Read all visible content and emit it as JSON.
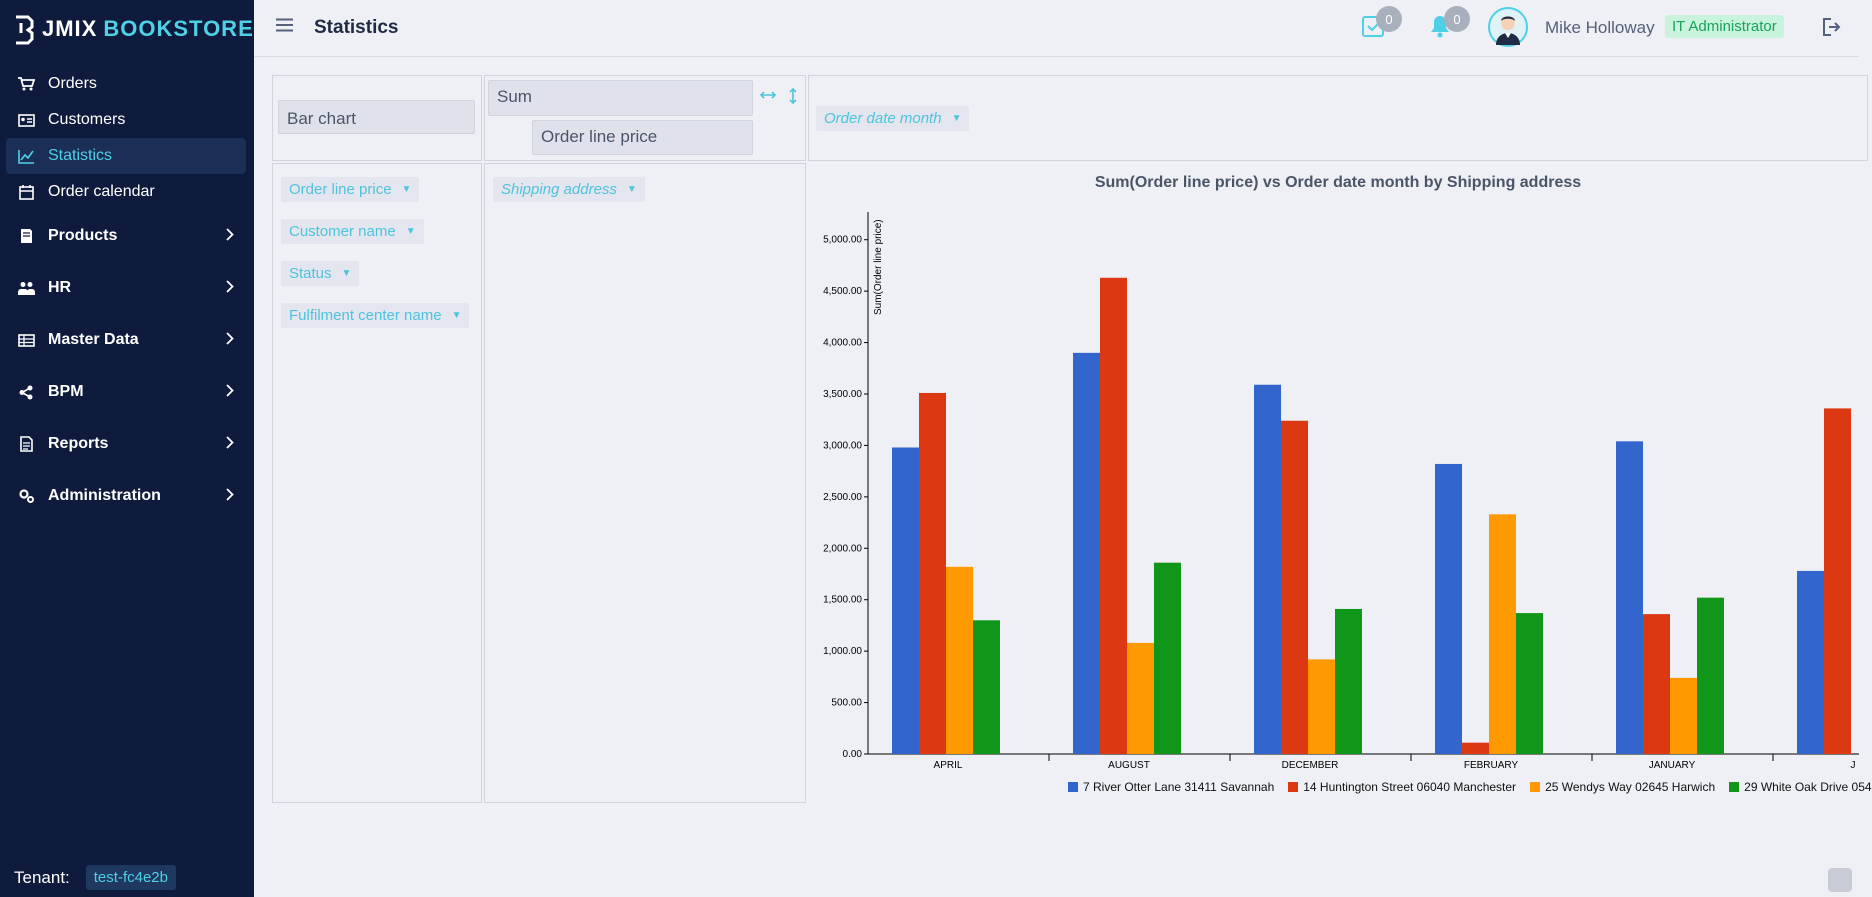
{
  "app": {
    "logo_text_1": "JMIX",
    "logo_text_2": "BOOKSTORE"
  },
  "sidebar": {
    "items": [
      {
        "label": "Orders",
        "icon": "cart-icon"
      },
      {
        "label": "Customers",
        "icon": "id-card-icon"
      },
      {
        "label": "Statistics",
        "icon": "chart-icon",
        "active": true
      },
      {
        "label": "Order calendar",
        "icon": "calendar-icon"
      }
    ],
    "groups": [
      {
        "label": "Products",
        "icon": "book-icon"
      },
      {
        "label": "HR",
        "icon": "people-icon"
      },
      {
        "label": "Master Data",
        "icon": "table-icon"
      },
      {
        "label": "BPM",
        "icon": "share-icon"
      },
      {
        "label": "Reports",
        "icon": "report-icon"
      },
      {
        "label": "Administration",
        "icon": "cogs-icon"
      }
    ],
    "tenant_label": "Tenant:",
    "tenant_value": "test-fc4e2b"
  },
  "topbar": {
    "title": "Statistics",
    "tasks_count": "0",
    "notifications_count": "0",
    "user_name": "Mike Holloway",
    "role": "IT Administrator"
  },
  "pivot": {
    "renderer": "Bar chart",
    "aggregator": "Sum",
    "aggregator_attribute": "Order line price",
    "column_fields": [
      "Order date month"
    ],
    "row_fields": [
      "Shipping address"
    ],
    "unused_fields": [
      "Order line price",
      "Customer name",
      "Status",
      "Fulfilment center name"
    ]
  },
  "colors": {
    "accent": "#4fd0e6",
    "sidebar_bg": "#0e1b3d",
    "series": [
      "#3366cc",
      "#dc3912",
      "#ff9900",
      "#109618"
    ]
  },
  "chart_data": {
    "type": "bar",
    "title": "Sum(Order line price) vs Order date month by Shipping address",
    "ylabel": "Sum(Order line price)",
    "xlabel": "",
    "ylim": [
      0,
      5250
    ],
    "yticks": [
      "0.00",
      "500.00",
      "1,000.00",
      "1,500.00",
      "2,000.00",
      "2,500.00",
      "3,000.00",
      "3,500.00",
      "4,000.00",
      "4,500.00",
      "5,000.00"
    ],
    "categories": [
      "APRIL",
      "AUGUST",
      "DECEMBER",
      "FEBRUARY",
      "JANUARY",
      "J"
    ],
    "series": [
      {
        "name": "7 River Otter Lane 31411 Savannah",
        "values": [
          2980,
          3900,
          3590,
          2820,
          3040,
          1780
        ]
      },
      {
        "name": "14 Huntington Street 06040 Manchester",
        "values": [
          3510,
          4630,
          3240,
          110,
          1360,
          3360
        ]
      },
      {
        "name": "25 Wendys Way 02645 Harwich",
        "values": [
          1820,
          1080,
          920,
          2330,
          740,
          null
        ]
      },
      {
        "name": "29 White Oak Drive 054",
        "values": [
          1300,
          1860,
          1410,
          1370,
          1520,
          null
        ]
      }
    ],
    "grid": false,
    "legend_position": "bottom"
  }
}
